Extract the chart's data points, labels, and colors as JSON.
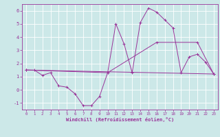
{
  "title": "",
  "xlabel": "Windchill (Refroidissement éolien,°C)",
  "background_color": "#cce8e8",
  "grid_color": "#ffffff",
  "line_color": "#993399",
  "xlim": [
    -0.5,
    23.5
  ],
  "ylim": [
    -1.5,
    6.5
  ],
  "xticks": [
    0,
    1,
    2,
    3,
    4,
    5,
    6,
    7,
    8,
    9,
    10,
    11,
    12,
    13,
    14,
    15,
    16,
    17,
    18,
    19,
    20,
    21,
    22,
    23
  ],
  "yticks": [
    -1,
    0,
    1,
    2,
    3,
    4,
    5,
    6
  ],
  "series1_x": [
    0,
    1,
    2,
    3,
    4,
    5,
    6,
    7,
    8,
    9,
    10,
    11,
    12,
    13,
    14,
    15,
    16,
    17,
    18,
    19,
    20,
    21,
    22,
    23
  ],
  "series1_y": [
    1.5,
    1.5,
    1.1,
    1.3,
    0.3,
    0.2,
    -0.3,
    -1.2,
    -1.2,
    -0.5,
    1.3,
    5.0,
    3.5,
    1.3,
    5.1,
    6.2,
    5.9,
    5.3,
    4.7,
    1.3,
    2.5,
    2.7,
    2.1,
    1.2
  ],
  "series2_x": [
    0,
    10,
    16,
    21,
    23
  ],
  "series2_y": [
    1.5,
    1.3,
    3.6,
    3.6,
    1.2
  ],
  "series3_x": [
    0,
    23
  ],
  "series3_y": [
    1.5,
    1.2
  ],
  "figsize": [
    3.2,
    2.0
  ],
  "dpi": 100
}
